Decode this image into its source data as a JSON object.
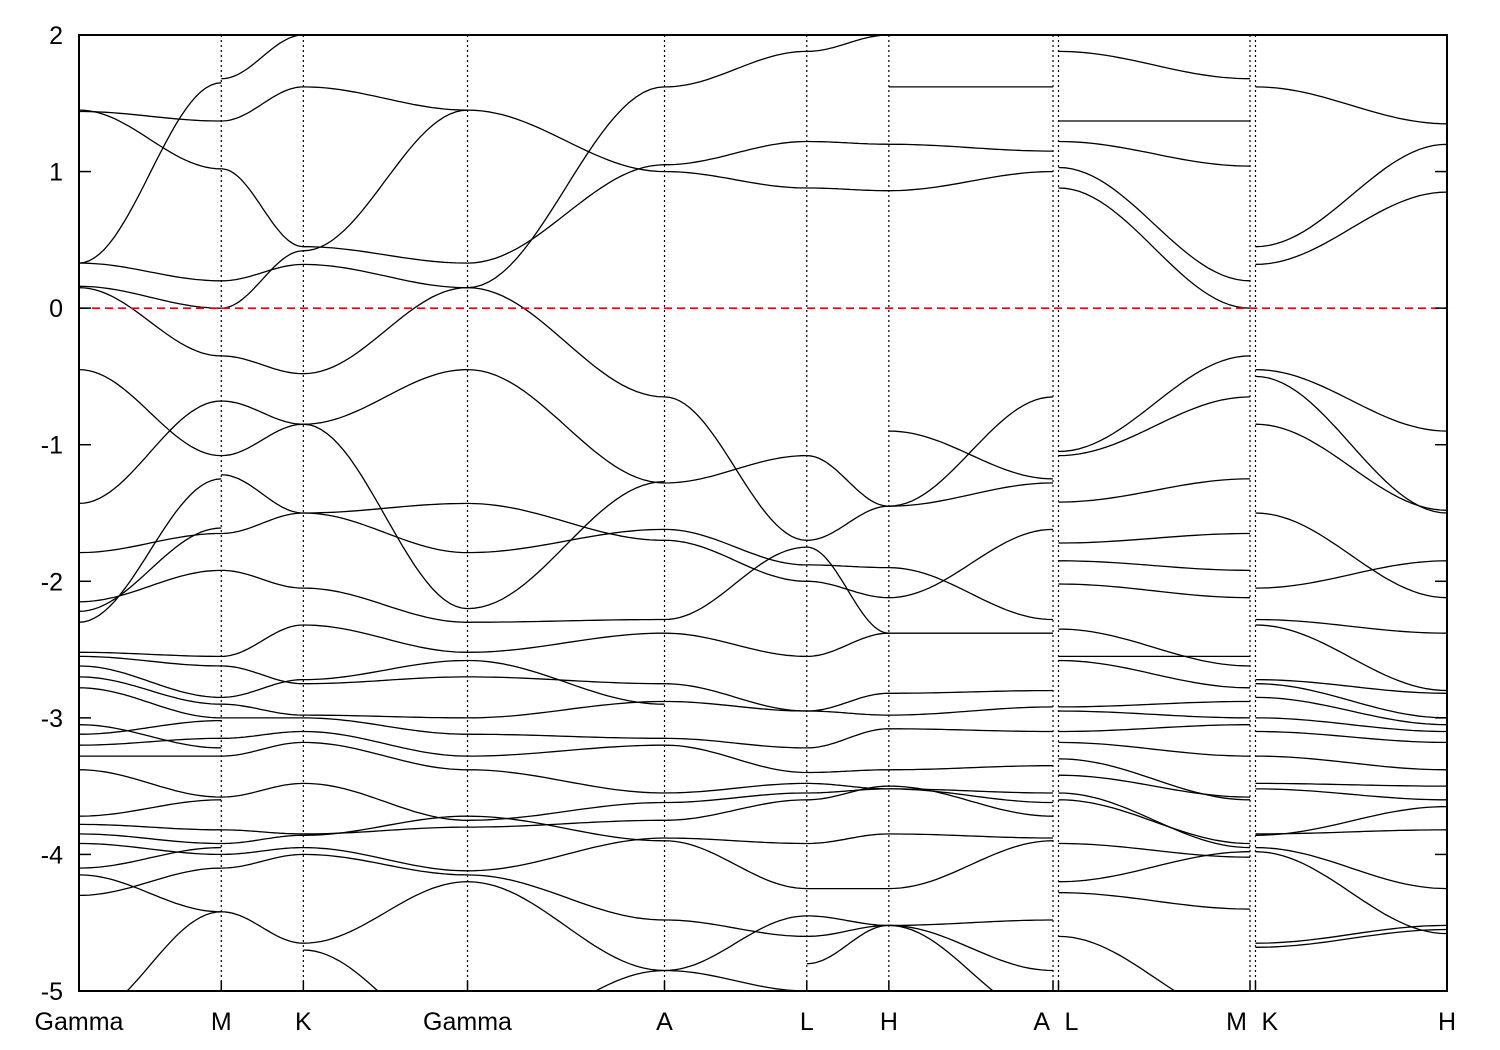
{
  "chart_data": {
    "type": "line",
    "title": "",
    "xlabel": "",
    "ylabel": "",
    "ylim": [
      -5,
      2
    ],
    "y_ticks": [
      2,
      1,
      0,
      -1,
      -2,
      -3,
      -4,
      -5
    ],
    "y_tick_labels": [
      "2",
      "1",
      "0",
      "-1",
      "-2",
      "-3",
      "-4",
      "-5"
    ],
    "x_range": [
      0,
      10
    ],
    "k_points": [
      {
        "label": "Gamma",
        "x": 0.0
      },
      {
        "label": "M",
        "x": 1.04
      },
      {
        "label": "K",
        "x": 1.64
      },
      {
        "label": "Gamma",
        "x": 2.84
      },
      {
        "label": "A",
        "x": 4.28
      },
      {
        "label": "L",
        "x": 5.32
      },
      {
        "label": "H",
        "x": 5.92
      },
      {
        "label": "A",
        "x": 7.12
      },
      {
        "label": "L",
        "x": 7.16
      },
      {
        "label": "M",
        "x": 8.56
      },
      {
        "label": "K",
        "x": 8.6
      },
      {
        "label": "H",
        "x": 10.0
      }
    ],
    "fermi_level": 0,
    "fermi_color": "#e8000b",
    "band_color": "#000000",
    "segments": [
      {
        "from": "Gamma",
        "to": "M",
        "x0": 0.0,
        "x1": 1.04,
        "bands": [
          [
            1.45,
            1.02
          ],
          [
            1.44,
            1.37
          ],
          [
            0.33,
            0.2
          ],
          [
            0.33,
            1.65
          ],
          [
            0.16,
            0.0
          ],
          [
            0.15,
            -0.35
          ],
          [
            -0.45,
            -1.08
          ],
          [
            -1.43,
            -0.68
          ],
          [
            -1.79,
            -1.65
          ],
          [
            -2.15,
            -1.92
          ],
          [
            -2.22,
            -1.61
          ],
          [
            -2.3,
            -1.25
          ],
          [
            -2.52,
            -2.55
          ],
          [
            -2.55,
            -2.62
          ],
          [
            -2.62,
            -2.85
          ],
          [
            -2.7,
            -2.9
          ],
          [
            -2.78,
            -3.0
          ],
          [
            -3.05,
            -3.22
          ],
          [
            -3.12,
            -3.02
          ],
          [
            -3.2,
            -3.15
          ],
          [
            -3.28,
            -3.28
          ],
          [
            -3.38,
            -3.58
          ],
          [
            -3.72,
            -3.6
          ],
          [
            -3.78,
            -3.82
          ],
          [
            -3.85,
            -3.92
          ],
          [
            -3.92,
            -4.0
          ],
          [
            -4.1,
            -3.95
          ],
          [
            -4.15,
            -4.42
          ],
          [
            -4.3,
            -4.1
          ],
          [
            -5.2,
            -4.42
          ]
        ]
      },
      {
        "from": "M",
        "to": "K",
        "x0": 1.04,
        "x1": 1.64,
        "bands": [
          [
            1.68,
            2.0
          ],
          [
            1.37,
            1.62
          ],
          [
            1.02,
            0.45
          ],
          [
            0.2,
            0.32
          ],
          [
            0.0,
            0.42
          ],
          [
            -0.35,
            -0.48
          ],
          [
            -0.68,
            -0.85
          ],
          [
            -1.08,
            -0.85
          ],
          [
            -1.22,
            -1.5
          ],
          [
            -1.65,
            -1.5
          ],
          [
            -1.92,
            -2.05
          ],
          [
            -2.55,
            -2.32
          ],
          [
            -2.62,
            -2.75
          ],
          [
            -2.85,
            -2.72
          ],
          [
            -2.9,
            -2.98
          ],
          [
            -3.0,
            -3.0
          ],
          [
            -3.15,
            -3.1
          ],
          [
            -3.28,
            -3.18
          ],
          [
            -3.58,
            -3.48
          ],
          [
            -3.82,
            -3.85
          ],
          [
            -3.92,
            -3.86
          ],
          [
            -4.0,
            -3.95
          ],
          [
            -4.42,
            -4.65
          ],
          [
            -4.1,
            -4.0
          ]
        ]
      },
      {
        "from": "K",
        "to": "Gamma",
        "x0": 1.64,
        "x1": 2.84,
        "bands": [
          [
            1.62,
            1.45
          ],
          [
            0.45,
            0.33
          ],
          [
            0.32,
            0.15
          ],
          [
            0.42,
            1.45
          ],
          [
            -0.48,
            0.15
          ],
          [
            -0.85,
            -0.45
          ],
          [
            -0.85,
            -2.2
          ],
          [
            -1.5,
            -1.43
          ],
          [
            -1.5,
            -1.79
          ],
          [
            -2.05,
            -2.3
          ],
          [
            -2.32,
            -2.52
          ],
          [
            -2.75,
            -2.7
          ],
          [
            -2.72,
            -2.58
          ],
          [
            -2.98,
            -3.0
          ],
          [
            -3.0,
            -3.12
          ],
          [
            -3.1,
            -3.28
          ],
          [
            -3.18,
            -3.38
          ],
          [
            -3.48,
            -3.75
          ],
          [
            -3.85,
            -3.8
          ],
          [
            -3.86,
            -3.72
          ],
          [
            -3.95,
            -4.12
          ],
          [
            -4.0,
            -4.15
          ],
          [
            -4.65,
            -4.2
          ],
          [
            -4.7,
            -5.4
          ]
        ]
      },
      {
        "from": "Gamma",
        "to": "A",
        "x0": 2.84,
        "x1": 4.28,
        "bands": [
          [
            1.45,
            1.0
          ],
          [
            0.33,
            1.05
          ],
          [
            0.15,
            -0.65
          ],
          [
            0.15,
            1.62
          ],
          [
            -0.45,
            -1.28
          ],
          [
            -1.43,
            -1.7
          ],
          [
            -1.79,
            -1.62
          ],
          [
            -2.2,
            -1.27
          ],
          [
            -2.3,
            -2.28
          ],
          [
            -2.52,
            -2.38
          ],
          [
            -2.58,
            -2.9
          ],
          [
            -2.7,
            -2.75
          ],
          [
            -3.0,
            -2.88
          ],
          [
            -3.12,
            -3.15
          ],
          [
            -3.28,
            -3.2
          ],
          [
            -3.38,
            -3.55
          ],
          [
            -3.75,
            -3.62
          ],
          [
            -3.8,
            -3.75
          ],
          [
            -3.72,
            -3.9
          ],
          [
            -4.12,
            -3.88
          ],
          [
            -4.15,
            -4.48
          ],
          [
            -4.2,
            -4.85
          ],
          [
            -5.4,
            -4.85
          ]
        ]
      },
      {
        "from": "A",
        "to": "L",
        "x0": 4.28,
        "x1": 5.32,
        "bands": [
          [
            1.62,
            1.88
          ],
          [
            1.05,
            1.22
          ],
          [
            1.0,
            0.88
          ],
          [
            -0.65,
            -1.7
          ],
          [
            -1.28,
            -1.08
          ],
          [
            -1.62,
            -1.88
          ],
          [
            -1.7,
            -2.0
          ],
          [
            -2.28,
            -1.75
          ],
          [
            -2.38,
            -2.55
          ],
          [
            -2.75,
            -2.95
          ],
          [
            -2.88,
            -2.95
          ],
          [
            -3.15,
            -3.22
          ],
          [
            -3.2,
            -3.4
          ],
          [
            -3.55,
            -3.48
          ],
          [
            -3.62,
            -3.55
          ],
          [
            -3.75,
            -3.6
          ],
          [
            -3.88,
            -3.92
          ],
          [
            -3.9,
            -4.25
          ],
          [
            -4.48,
            -4.6
          ],
          [
            -4.85,
            -4.45
          ],
          [
            -4.85,
            -5.0
          ]
        ]
      },
      {
        "from": "L",
        "to": "H",
        "x0": 5.32,
        "x1": 5.92,
        "bands": [
          [
            1.88,
            2.0
          ],
          [
            1.22,
            1.2
          ],
          [
            0.88,
            0.86
          ],
          [
            -1.7,
            -1.45
          ],
          [
            -1.08,
            -1.45
          ],
          [
            -1.88,
            -1.9
          ],
          [
            -2.0,
            -2.12
          ],
          [
            -1.75,
            -2.38
          ],
          [
            -2.55,
            -2.38
          ],
          [
            -2.95,
            -2.82
          ],
          [
            -2.95,
            -2.98
          ],
          [
            -3.22,
            -3.08
          ],
          [
            -3.4,
            -3.38
          ],
          [
            -3.48,
            -3.52
          ],
          [
            -3.55,
            -3.52
          ],
          [
            -3.6,
            -3.5
          ],
          [
            -3.92,
            -3.85
          ],
          [
            -4.25,
            -4.25
          ],
          [
            -4.6,
            -4.52
          ],
          [
            -4.45,
            -4.52
          ],
          [
            -4.8,
            -4.52
          ]
        ]
      },
      {
        "from": "H",
        "to": "A",
        "x0": 5.92,
        "x1": 7.12,
        "bands": [
          [
            1.62,
            1.62
          ],
          [
            1.2,
            1.15
          ],
          [
            0.86,
            1.0
          ],
          [
            -1.45,
            -0.65
          ],
          [
            -1.45,
            -1.28
          ],
          [
            -0.9,
            -1.25
          ],
          [
            -1.9,
            -2.28
          ],
          [
            -2.12,
            -1.62
          ],
          [
            -2.38,
            -2.38
          ],
          [
            -2.82,
            -2.8
          ],
          [
            -2.98,
            -2.92
          ],
          [
            -3.08,
            -3.1
          ],
          [
            -3.38,
            -3.35
          ],
          [
            -3.52,
            -3.62
          ],
          [
            -3.52,
            -3.55
          ],
          [
            -3.5,
            -3.72
          ],
          [
            -3.85,
            -3.88
          ],
          [
            -4.25,
            -3.9
          ],
          [
            -4.52,
            -4.48
          ],
          [
            -4.52,
            -4.85
          ],
          [
            -4.52,
            -5.2
          ]
        ]
      },
      {
        "from": "L",
        "to": "M",
        "x0": 7.16,
        "x1": 8.56,
        "bands": [
          [
            1.88,
            1.68
          ],
          [
            1.37,
            1.37
          ],
          [
            1.22,
            1.04
          ],
          [
            0.88,
            0.0
          ],
          [
            1.03,
            0.2
          ],
          [
            -1.05,
            -0.35
          ],
          [
            -1.08,
            -0.65
          ],
          [
            -1.42,
            -1.25
          ],
          [
            -1.72,
            -1.65
          ],
          [
            -1.85,
            -1.92
          ],
          [
            -2.02,
            -2.12
          ],
          [
            -2.35,
            -2.62
          ],
          [
            -2.55,
            -2.55
          ],
          [
            -2.58,
            -2.78
          ],
          [
            -2.92,
            -2.88
          ],
          [
            -2.95,
            -3.0
          ],
          [
            -3.1,
            -3.05
          ],
          [
            -3.18,
            -3.28
          ],
          [
            -3.3,
            -3.6
          ],
          [
            -3.42,
            -3.58
          ],
          [
            -3.55,
            -3.95
          ],
          [
            -3.6,
            -3.92
          ],
          [
            -3.92,
            -4.02
          ],
          [
            -4.2,
            -3.98
          ],
          [
            -4.28,
            -4.4
          ],
          [
            -4.6,
            -5.2
          ]
        ]
      },
      {
        "from": "K",
        "to": "H",
        "x0": 8.6,
        "x1": 10.0,
        "bands": [
          [
            1.62,
            1.35
          ],
          [
            0.45,
            1.2
          ],
          [
            0.32,
            0.85
          ],
          [
            -0.45,
            -0.9
          ],
          [
            -0.5,
            -1.5
          ],
          [
            -0.85,
            -1.48
          ],
          [
            -1.5,
            -2.12
          ],
          [
            -2.05,
            -1.85
          ],
          [
            -2.28,
            -2.38
          ],
          [
            -2.32,
            -2.8
          ],
          [
            -2.72,
            -2.82
          ],
          [
            -2.75,
            -3.0
          ],
          [
            -2.85,
            -3.05
          ],
          [
            -3.0,
            -3.1
          ],
          [
            -3.1,
            -3.18
          ],
          [
            -3.28,
            -3.38
          ],
          [
            -3.48,
            -3.5
          ],
          [
            -3.52,
            -3.6
          ],
          [
            -3.85,
            -3.82
          ],
          [
            -3.86,
            -3.65
          ],
          [
            -3.95,
            -4.25
          ],
          [
            -3.98,
            -4.58
          ],
          [
            -4.65,
            -4.52
          ],
          [
            -4.68,
            -4.55
          ]
        ]
      }
    ]
  }
}
